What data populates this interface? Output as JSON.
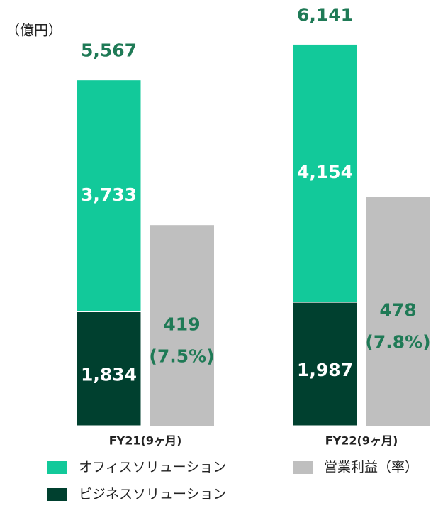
{
  "chart_data": {
    "type": "bar",
    "ylabel": "（億円）",
    "categories": [
      "FY21(9ヶ月)",
      "FY22(9ヶ月)"
    ],
    "series": [
      {
        "name": "ビジネスソリューション",
        "color": "#00402f",
        "values": [
          1834,
          1987
        ],
        "value_labels": [
          "1,834",
          "1,987"
        ],
        "stack": "revenue"
      },
      {
        "name": "オフィスソリューション",
        "color": "#12c99a",
        "values": [
          3733,
          4154
        ],
        "value_labels": [
          "3,733",
          "4,154"
        ],
        "stack": "revenue"
      },
      {
        "name": "営業利益（率）",
        "color": "#bfbfbf",
        "values": [
          419,
          478
        ],
        "value_labels": [
          "419",
          "478"
        ],
        "axis": "y2",
        "rate_values": [
          7.5,
          7.8
        ],
        "rate_labels": [
          "(7.5%)",
          "(7.8%)"
        ]
      }
    ],
    "totals": [
      5567,
      6141
    ],
    "total_labels": [
      "5,567",
      "6,141"
    ],
    "ylim": [
      0,
      6500
    ],
    "y2lim": [
      0,
      843
    ]
  }
}
